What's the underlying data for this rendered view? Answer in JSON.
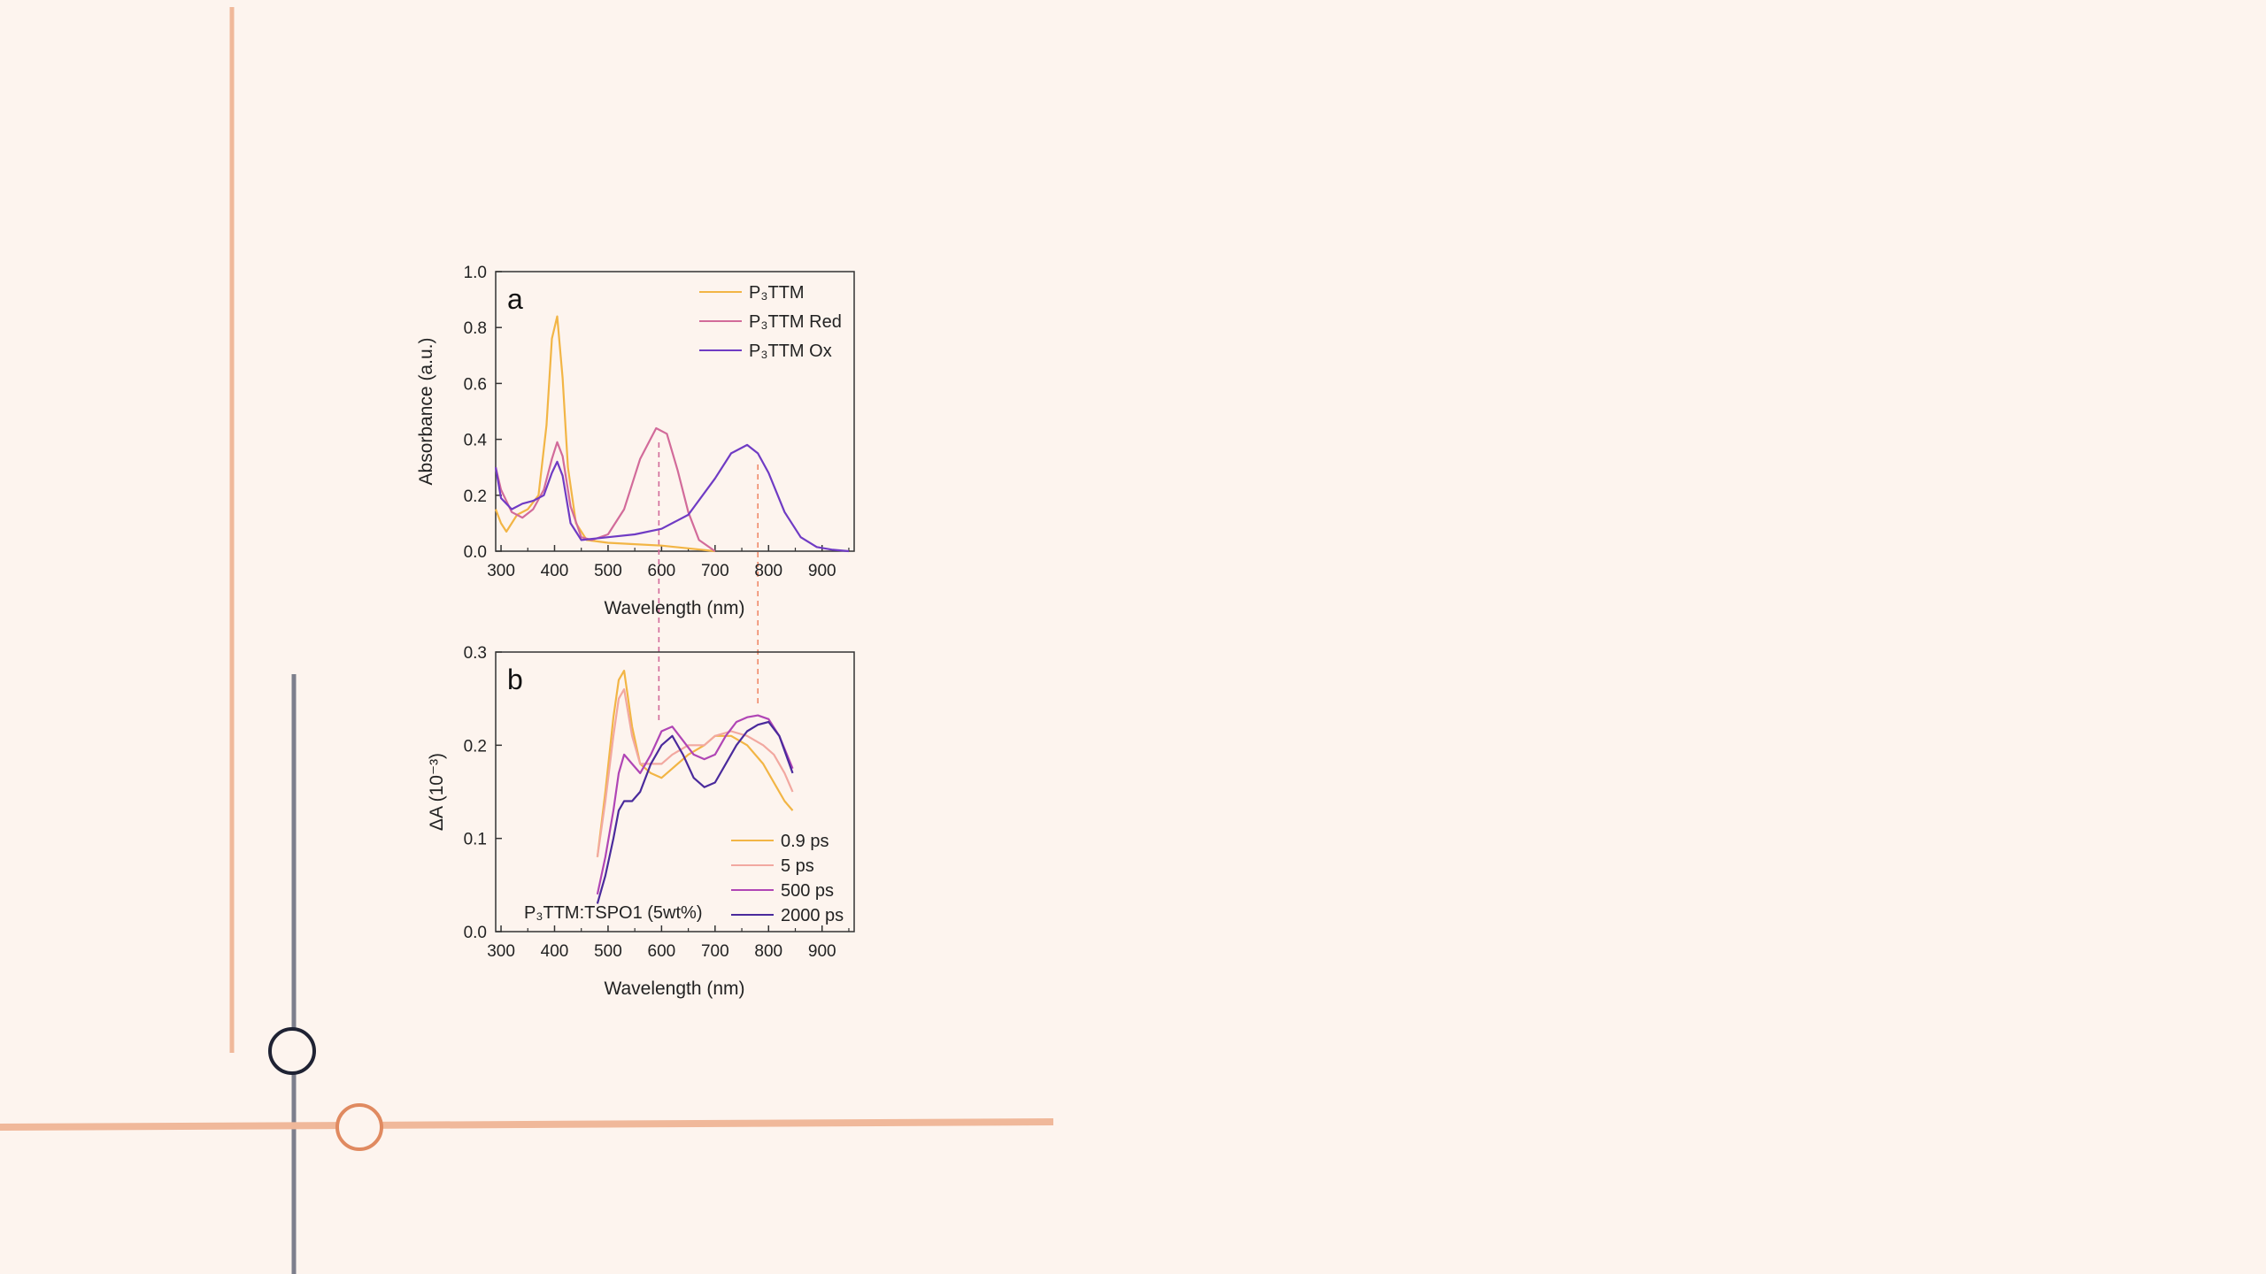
{
  "decoration": {
    "accent_line_color": "#f0b89a",
    "slate_line_color": "#7d7f8c",
    "navy_circle_color": "#1f2233",
    "orange_circle_color": "#e08a60",
    "background_color": "#fdf4ee"
  },
  "chart_data": [
    {
      "type": "line",
      "panel_label": "a",
      "xlabel": "Wavelength (nm)",
      "ylabel": "Absorbance (a.u.)",
      "xlim": [
        290,
        960
      ],
      "ylim": [
        0,
        1.0
      ],
      "xticks": [
        "300",
        "400",
        "500",
        "600",
        "700",
        "800",
        "900"
      ],
      "yticks": [
        "0.0",
        "0.2",
        "0.4",
        "0.6",
        "0.8",
        "1.0"
      ],
      "legend_position": "top-right",
      "series": [
        {
          "name": "P₃TTM",
          "color": "#f2b545",
          "x": [
            290,
            300,
            310,
            330,
            350,
            370,
            385,
            395,
            405,
            415,
            425,
            440,
            460,
            500,
            550,
            600,
            650,
            700
          ],
          "y": [
            0.15,
            0.1,
            0.07,
            0.13,
            0.15,
            0.2,
            0.45,
            0.76,
            0.84,
            0.62,
            0.3,
            0.1,
            0.04,
            0.03,
            0.025,
            0.02,
            0.01,
            0.0
          ]
        },
        {
          "name": "P₃TTM Red",
          "color": "#d26b9a",
          "x": [
            290,
            300,
            320,
            340,
            360,
            380,
            395,
            405,
            415,
            430,
            450,
            470,
            500,
            530,
            560,
            590,
            610,
            630,
            650,
            670,
            700
          ],
          "y": [
            0.3,
            0.22,
            0.14,
            0.12,
            0.15,
            0.22,
            0.33,
            0.39,
            0.34,
            0.16,
            0.05,
            0.04,
            0.06,
            0.15,
            0.33,
            0.44,
            0.42,
            0.29,
            0.14,
            0.04,
            0.0
          ]
        },
        {
          "name": "P₃TTM Ox",
          "color": "#6f3bc4",
          "x": [
            290,
            300,
            320,
            340,
            360,
            380,
            395,
            405,
            415,
            430,
            450,
            500,
            550,
            600,
            650,
            700,
            730,
            760,
            780,
            800,
            830,
            860,
            890,
            920,
            950
          ],
          "y": [
            0.3,
            0.19,
            0.15,
            0.17,
            0.18,
            0.2,
            0.28,
            0.32,
            0.27,
            0.1,
            0.04,
            0.05,
            0.06,
            0.08,
            0.13,
            0.26,
            0.35,
            0.38,
            0.35,
            0.28,
            0.14,
            0.05,
            0.015,
            0.005,
            0.0
          ]
        }
      ]
    },
    {
      "type": "line",
      "panel_label": "b",
      "xlabel": "Wavelength (nm)",
      "ylabel": "ΔA (10⁻³)",
      "xlim": [
        290,
        960
      ],
      "ylim": [
        0,
        0.3
      ],
      "xticks": [
        "300",
        "400",
        "500",
        "600",
        "700",
        "800",
        "900"
      ],
      "yticks": [
        "0.0",
        "0.1",
        "0.2",
        "0.3"
      ],
      "legend_position": "bottom-right",
      "annotation": "P₃TTM:TSPO1 (5wt%)",
      "series": [
        {
          "name": "0.9 ps",
          "color": "#f2b545",
          "x": [
            480,
            495,
            510,
            520,
            530,
            545,
            560,
            580,
            600,
            620,
            650,
            680,
            700,
            730,
            760,
            790,
            810,
            830,
            845
          ],
          "y": [
            0.08,
            0.15,
            0.23,
            0.27,
            0.28,
            0.22,
            0.18,
            0.17,
            0.165,
            0.175,
            0.19,
            0.2,
            0.21,
            0.21,
            0.2,
            0.18,
            0.16,
            0.14,
            0.13
          ]
        },
        {
          "name": "5 ps",
          "color": "#f2a8a0",
          "x": [
            480,
            495,
            510,
            520,
            530,
            545,
            560,
            580,
            600,
            620,
            650,
            680,
            700,
            730,
            760,
            790,
            810,
            830,
            845
          ],
          "y": [
            0.08,
            0.14,
            0.21,
            0.25,
            0.26,
            0.21,
            0.18,
            0.18,
            0.18,
            0.19,
            0.2,
            0.2,
            0.21,
            0.215,
            0.21,
            0.2,
            0.19,
            0.17,
            0.15
          ]
        },
        {
          "name": "500 ps",
          "color": "#b045b5",
          "x": [
            480,
            495,
            510,
            520,
            530,
            545,
            560,
            580,
            600,
            620,
            640,
            660,
            680,
            700,
            720,
            740,
            760,
            780,
            800,
            820,
            845
          ],
          "y": [
            0.04,
            0.08,
            0.13,
            0.17,
            0.19,
            0.18,
            0.17,
            0.19,
            0.215,
            0.22,
            0.205,
            0.19,
            0.185,
            0.19,
            0.21,
            0.225,
            0.23,
            0.232,
            0.228,
            0.21,
            0.175
          ]
        },
        {
          "name": "2000 ps",
          "color": "#4a2a9c",
          "x": [
            480,
            495,
            510,
            520,
            530,
            545,
            560,
            580,
            600,
            620,
            640,
            660,
            680,
            700,
            720,
            740,
            760,
            780,
            800,
            820,
            845
          ],
          "y": [
            0.03,
            0.06,
            0.1,
            0.13,
            0.14,
            0.14,
            0.15,
            0.18,
            0.2,
            0.21,
            0.19,
            0.165,
            0.155,
            0.16,
            0.18,
            0.2,
            0.215,
            0.222,
            0.225,
            0.21,
            0.17
          ]
        }
      ]
    }
  ]
}
